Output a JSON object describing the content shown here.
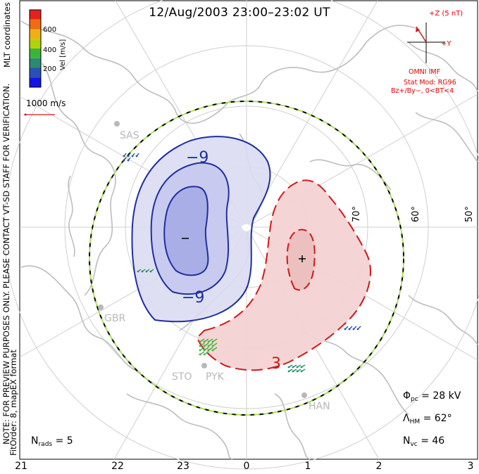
{
  "title": "12/Aug/2003 23:00–23:02 UT",
  "coord_label": "MLT coordinates",
  "verification_note": "NOTE: FOR PREVIEW PURPOSES ONLY. PLEASE CONTACT VT-SD STAFF FOR VERIFICATION.",
  "fit_order_note": "FitOrder: 8, mapEX format",
  "colorbar": {
    "label": "Vel [m/s]",
    "ticks": [
      "600",
      "400",
      "200"
    ],
    "colors": [
      "#e8201c",
      "#f06a14",
      "#f0b014",
      "#b4d20a",
      "#3cb43c",
      "#2a8a70",
      "#2a50b8",
      "#1414e6"
    ]
  },
  "vector_scale": {
    "label": "1000 m/s"
  },
  "imf": {
    "bz_label": "+Z (5 nT)",
    "by_label": "+Y",
    "source": "OMNI IMF",
    "model": "Stat Mod: RG96",
    "condition": "Bz+/By−, 0<BT<4"
  },
  "latitude_labels": [
    "70°",
    "60°",
    "50°"
  ],
  "mlt_labels": [
    "21",
    "22",
    "23",
    "0",
    "1",
    "2",
    "3"
  ],
  "radar_sites": [
    "SAS",
    "GBR",
    "STO",
    "PYK",
    "HAN"
  ],
  "contours": {
    "negative_label": "−9",
    "positive_label": "3",
    "min_marker": "−",
    "max_marker": "+"
  },
  "stats": {
    "phi_pc": {
      "symbol": "Φ",
      "sub": "pc",
      "value": "= 28 kV"
    },
    "lambda_hm": {
      "symbol": "Λ",
      "sub": "HM",
      "value": "= 62°"
    },
    "n_vc": {
      "symbol": "N",
      "sub": "vc",
      "value": "= 46"
    },
    "n_rads": {
      "symbol": "N",
      "sub": "rads",
      "value": "= 5"
    }
  },
  "style": {
    "negative_color": "#1f2fa0",
    "positive_color": "#cc1a1a",
    "grid_color": "#c8c8c8",
    "coast_color": "#bdbdbd"
  }
}
